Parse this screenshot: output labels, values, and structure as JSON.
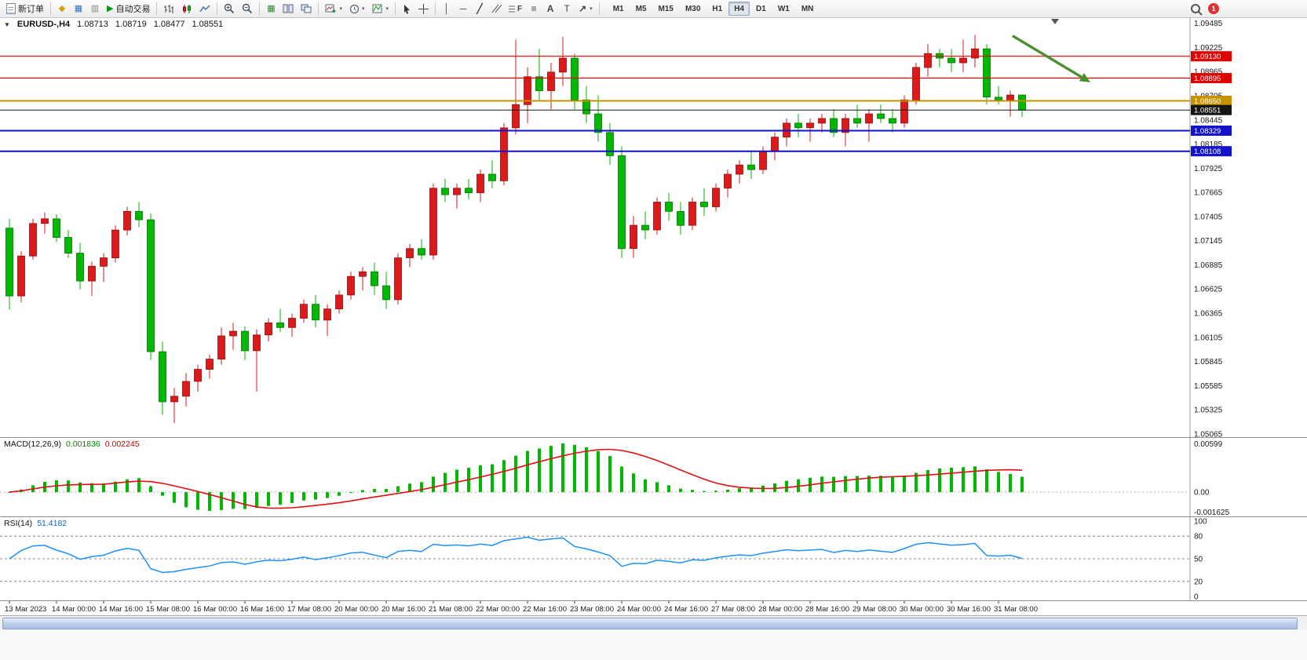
{
  "toolbar": {
    "new_order_label": "新订单",
    "autotrading_label": "自动交易",
    "timeframes": [
      "M1",
      "M5",
      "M15",
      "M30",
      "H1",
      "H4",
      "D1",
      "W1",
      "MN"
    ],
    "active_timeframe": "H4",
    "notification_count": "1",
    "text_tool": "A",
    "label_tool": "T",
    "fibo_tool": "F",
    "andrews_tool": "≡",
    "vline_tool": "│",
    "hline_tool": "─",
    "trendline_tool": "╱",
    "arrow_tool": "↗"
  },
  "chart_window": {
    "symbol_period": "EURUSD-,H4",
    "open": "1.08713",
    "high": "1.08719",
    "low": "1.08477",
    "close": "1.08551"
  },
  "chart_data": [
    {
      "type": "candlestick",
      "symbol": "EURUSD-",
      "period": "H4",
      "ylim": [
        1.0503,
        1.0955
      ],
      "y_ticks": [
        1.09485,
        1.09225,
        1.08965,
        1.08705,
        1.08445,
        1.08185,
        1.07925,
        1.07665,
        1.07405,
        1.07145,
        1.06885,
        1.06625,
        1.06365,
        1.06105,
        1.05845,
        1.05585,
        1.05325,
        1.05065
      ],
      "x_labels": [
        "13 Mar 2023",
        "14 Mar 00:00",
        "14 Mar 16:00",
        "15 Mar 08:00",
        "16 Mar 00:00",
        "16 Mar 16:00",
        "17 Mar 08:00",
        "20 Mar 00:00",
        "20 Mar 16:00",
        "21 Mar 08:00",
        "22 Mar 00:00",
        "22 Mar 16:00",
        "23 Mar 08:00",
        "24 Mar 00:00",
        "24 Mar 16:00",
        "27 Mar 08:00",
        "28 Mar 00:00",
        "28 Mar 16:00",
        "29 Mar 08:00",
        "30 Mar 00:00",
        "30 Mar 16:00",
        "31 Mar 08:00"
      ],
      "label_every": 4,
      "up_color": "#dd1a1a",
      "down_color": "#00b800",
      "candles": [
        [
          1.0728,
          1.0738,
          1.064,
          1.0655
        ],
        [
          1.0655,
          1.0703,
          1.0648,
          1.0698
        ],
        [
          1.0698,
          1.0738,
          1.0694,
          1.0733
        ],
        [
          1.0733,
          1.0745,
          1.0722,
          1.0738
        ],
        [
          1.0738,
          1.0743,
          1.0713,
          1.0718
        ],
        [
          1.0718,
          1.0726,
          1.0696,
          1.0701
        ],
        [
          1.0701,
          1.0712,
          1.0662,
          1.0671
        ],
        [
          1.0671,
          1.0692,
          1.0655,
          1.0687
        ],
        [
          1.0687,
          1.0701,
          1.067,
          1.0696
        ],
        [
          1.0696,
          1.0731,
          1.0691,
          1.0726
        ],
        [
          1.0726,
          1.0751,
          1.072,
          1.0746
        ],
        [
          1.0746,
          1.0756,
          1.0729,
          1.0737
        ],
        [
          1.0737,
          1.0744,
          1.0586,
          1.0595
        ],
        [
          1.0595,
          1.0606,
          1.0527,
          1.0541
        ],
        [
          1.0541,
          1.0556,
          1.0518,
          1.0547
        ],
        [
          1.0547,
          1.0572,
          1.0536,
          1.0563
        ],
        [
          1.0563,
          1.0581,
          1.0552,
          1.0576
        ],
        [
          1.0576,
          1.0592,
          1.0566,
          1.0587
        ],
        [
          1.0587,
          1.0621,
          1.0581,
          1.0612
        ],
        [
          1.0612,
          1.0626,
          1.0597,
          1.0617
        ],
        [
          1.0617,
          1.0622,
          1.0586,
          1.0596
        ],
        [
          1.0596,
          1.0619,
          1.0552,
          1.0613
        ],
        [
          1.0613,
          1.0631,
          1.0606,
          1.0626
        ],
        [
          1.0626,
          1.0641,
          1.0616,
          1.0621
        ],
        [
          1.0621,
          1.0636,
          1.0611,
          1.0631
        ],
        [
          1.0631,
          1.0651,
          1.0626,
          1.0646
        ],
        [
          1.0646,
          1.0656,
          1.0621,
          1.0629
        ],
        [
          1.0629,
          1.0646,
          1.0612,
          1.0641
        ],
        [
          1.0641,
          1.0661,
          1.0636,
          1.0656
        ],
        [
          1.0656,
          1.0681,
          1.0651,
          1.0676
        ],
        [
          1.0676,
          1.0686,
          1.0661,
          1.0681
        ],
        [
          1.0681,
          1.0691,
          1.0656,
          1.0666
        ],
        [
          1.0666,
          1.0681,
          1.0641,
          1.0651
        ],
        [
          1.0651,
          1.0701,
          1.0646,
          1.0696
        ],
        [
          1.0696,
          1.0711,
          1.0686,
          1.0706
        ],
        [
          1.0706,
          1.0716,
          1.0694,
          1.0699
        ],
        [
          1.0699,
          1.0776,
          1.0694,
          1.0771
        ],
        [
          1.0771,
          1.0781,
          1.0756,
          1.0764
        ],
        [
          1.0764,
          1.0776,
          1.0749,
          1.0771
        ],
        [
          1.0771,
          1.0781,
          1.0759,
          1.0766
        ],
        [
          1.0766,
          1.0791,
          1.0756,
          1.0786
        ],
        [
          1.0786,
          1.0801,
          1.0771,
          1.0779
        ],
        [
          1.0779,
          1.0841,
          1.0774,
          1.0836
        ],
        [
          1.0836,
          1.0931,
          1.0829,
          1.0861
        ],
        [
          1.0861,
          1.0901,
          1.0841,
          1.0891
        ],
        [
          1.0891,
          1.0921,
          1.0866,
          1.0876
        ],
        [
          1.0876,
          1.0906,
          1.0856,
          1.0896
        ],
        [
          1.0896,
          1.0934,
          1.0881,
          1.0911
        ],
        [
          1.0911,
          1.0916,
          1.0856,
          1.0866
        ],
        [
          1.0866,
          1.0881,
          1.0841,
          1.0851
        ],
        [
          1.0851,
          1.0871,
          1.0821,
          1.0831
        ],
        [
          1.0831,
          1.0841,
          1.0796,
          1.0806
        ],
        [
          1.0806,
          1.0816,
          1.0696,
          1.0706
        ],
        [
          1.0706,
          1.0741,
          1.0696,
          1.0731
        ],
        [
          1.0731,
          1.0746,
          1.0716,
          1.0726
        ],
        [
          1.0726,
          1.0761,
          1.0721,
          1.0756
        ],
        [
          1.0756,
          1.0766,
          1.0736,
          1.0746
        ],
        [
          1.0746,
          1.0756,
          1.0721,
          1.0731
        ],
        [
          1.0731,
          1.0761,
          1.0726,
          1.0756
        ],
        [
          1.0756,
          1.0771,
          1.0741,
          1.0751
        ],
        [
          1.0751,
          1.0776,
          1.0746,
          1.0771
        ],
        [
          1.0771,
          1.0791,
          1.0761,
          1.0786
        ],
        [
          1.0786,
          1.0801,
          1.0776,
          1.0796
        ],
        [
          1.0796,
          1.0811,
          1.0781,
          1.0791
        ],
        [
          1.0791,
          1.0816,
          1.0786,
          1.0811
        ],
        [
          1.0811,
          1.0831,
          1.0801,
          1.0826
        ],
        [
          1.0826,
          1.0846,
          1.0816,
          1.0841
        ],
        [
          1.0841,
          1.0851,
          1.0826,
          1.0836
        ],
        [
          1.0836,
          1.0846,
          1.0821,
          1.0841
        ],
        [
          1.0841,
          1.0851,
          1.0831,
          1.0846
        ],
        [
          1.0846,
          1.0856,
          1.0826,
          1.0831
        ],
        [
          1.0831,
          1.0851,
          1.0816,
          1.0846
        ],
        [
          1.0846,
          1.0861,
          1.0836,
          1.0841
        ],
        [
          1.0841,
          1.0856,
          1.0821,
          1.0851
        ],
        [
          1.0851,
          1.0861,
          1.0841,
          1.0846
        ],
        [
          1.0846,
          1.0856,
          1.0831,
          1.0841
        ],
        [
          1.0841,
          1.0871,
          1.0836,
          1.0866
        ],
        [
          1.0866,
          1.0906,
          1.0861,
          1.0901
        ],
        [
          1.0901,
          1.0926,
          1.0891,
          1.0916
        ],
        [
          1.0916,
          1.0921,
          1.0901,
          1.0911
        ],
        [
          1.0911,
          1.0921,
          1.0896,
          1.0906
        ],
        [
          1.0906,
          1.0931,
          1.0896,
          1.0911
        ],
        [
          1.0911,
          1.0936,
          1.0901,
          1.0921
        ],
        [
          1.0921,
          1.0926,
          1.0861,
          1.0869
        ],
        [
          1.0869,
          1.0881,
          1.0861,
          1.0866
        ],
        [
          1.0866,
          1.0876,
          1.0848,
          1.08713
        ],
        [
          1.08713,
          1.08719,
          1.08477,
          1.08551
        ]
      ],
      "hlines": [
        {
          "price": 1.0913,
          "label": "1.09130",
          "color": "#e00000",
          "width": 1.2
        },
        {
          "price": 1.08895,
          "label": "1.08895",
          "color": "#e00000",
          "width": 1.2
        },
        {
          "price": 1.0865,
          "label": "1.08650",
          "color": "#c79200",
          "width": 2
        },
        {
          "price": 1.08329,
          "label": "1.08329",
          "color": "#1212cc",
          "width": 2
        },
        {
          "price": 1.08108,
          "label": "1.08108",
          "color": "#1212cc",
          "width": 2
        }
      ],
      "current_price": {
        "price": 1.08551,
        "label": "1.08551",
        "color": "#151515"
      },
      "arrow": {
        "from_candle": 85.2,
        "from_price": 1.0935,
        "to_candle": 91.8,
        "to_price": 1.0885,
        "color": "#4a8f2e"
      },
      "shift_marker_candle": 88.8
    },
    {
      "type": "macd",
      "label": "MACD(12,26,9)",
      "main_value": "0.001836",
      "signal_value": "0.002245",
      "params": {
        "fast": 12,
        "slow": 26,
        "signal": 9
      },
      "axis_labels": {
        "top": "0.00599",
        "zero": "0.00",
        "bottom": "-0.001625"
      },
      "histogram_color": "#00b800",
      "signal_color": "#e01010"
    },
    {
      "type": "rsi",
      "label": "RSI(14)",
      "value": "51.4182",
      "period": 14,
      "levels": [
        80,
        50,
        20
      ],
      "axis_labels": [
        "100",
        "80",
        "50",
        "20",
        "0"
      ],
      "line_color": "#1e90ff"
    }
  ]
}
